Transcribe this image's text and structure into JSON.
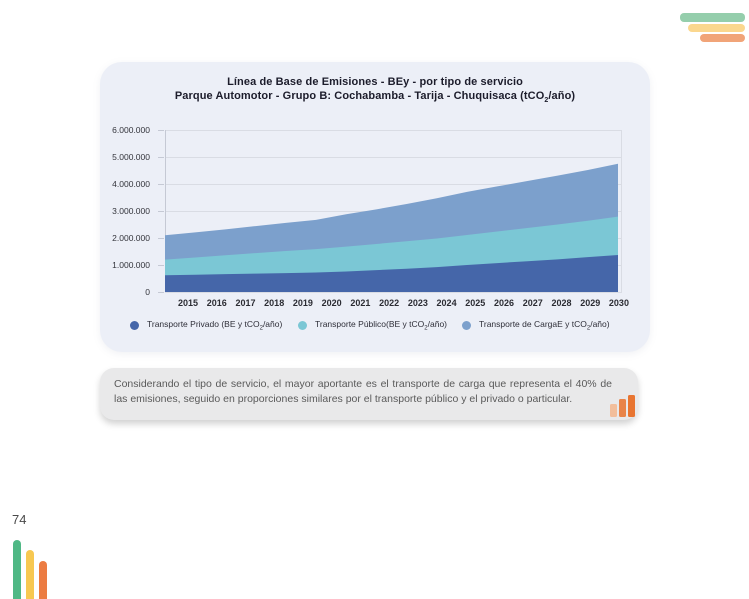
{
  "page": {
    "number": "74"
  },
  "colors": {
    "card_bg": "#ECEFF7",
    "title_text": "#1C1C2B",
    "grid": "#D9DCE4",
    "axis": "#C5C9D4",
    "note_bg": "#E9E9EA",
    "deco_green_soft": "#95CEAC",
    "deco_yellow_soft": "#FBD78E",
    "deco_orange_soft": "#F1A478",
    "deco_green": "#4FB885",
    "deco_yellow": "#F7C851",
    "deco_orange": "#EC7C42",
    "icon_orange_light": "#F2BE9B",
    "icon_orange_mid": "#E98449",
    "icon_orange_dark": "#E87531"
  },
  "chart": {
    "title_line1": "Línea de Base de Emisiones - BEy - por tipo de servicio",
    "title_line2_pre": "Parque Automotor - Grupo B: Cochabamba - Tarija - Chuquisaca (tCO",
    "title_line2_sub": "2",
    "title_line2_post": "/año)"
  },
  "chart_data": {
    "type": "area",
    "stacked": true,
    "title": "Línea de Base de Emisiones - BEy - por tipo de servicio — Parque Automotor - Grupo B: Cochabamba - Tarija - Chuquisaca (tCO2/año)",
    "x": [
      "2015",
      "2016",
      "2017",
      "2018",
      "2019",
      "2020",
      "2021",
      "2022",
      "2023",
      "2024",
      "2025",
      "2026",
      "2027",
      "2028",
      "2029",
      "2030"
    ],
    "series": [
      {
        "name_pre": "Transporte Privado (BE y tCO",
        "name_sub": "2",
        "name_post": "/año)",
        "color": "#4566A9",
        "values": [
          620000,
          640000,
          660000,
          680000,
          700000,
          720000,
          760000,
          810000,
          860000,
          920000,
          1000000,
          1070000,
          1140000,
          1210000,
          1290000,
          1370000
        ]
      },
      {
        "name_pre": "Transporte Público(BE y tCO",
        "name_sub": "2",
        "name_post": "/año)",
        "color": "#7BC7D5",
        "values": [
          580000,
          640000,
          700000,
          760000,
          820000,
          870000,
          920000,
          970000,
          1020000,
          1060000,
          1110000,
          1170000,
          1230000,
          1290000,
          1350000,
          1420000
        ]
      },
      {
        "name_pre": "Transporte de CargaE y tCO",
        "name_sub": "2",
        "name_post": "/año)",
        "color": "#7CA0CC",
        "values": [
          900000,
          930000,
          960000,
          1000000,
          1040000,
          1080000,
          1200000,
          1280000,
          1380000,
          1490000,
          1600000,
          1670000,
          1740000,
          1810000,
          1880000,
          1960000
        ]
      }
    ],
    "ylim": [
      0,
      6000000
    ],
    "ytick_step": 1000000,
    "ytick_labels": [
      "0",
      "1.000.000",
      "2.000.000",
      "3.000.000",
      "4.000.000",
      "5.000.000",
      "6.000.000"
    ],
    "grid": true,
    "legend_position": "bottom"
  },
  "note": {
    "text": "Considerando el tipo de servicio, el mayor aportante es el transporte de carga que representa el 40% de las emisiones, seguido en proporciones similares por el transporte público y el privado o particular."
  }
}
